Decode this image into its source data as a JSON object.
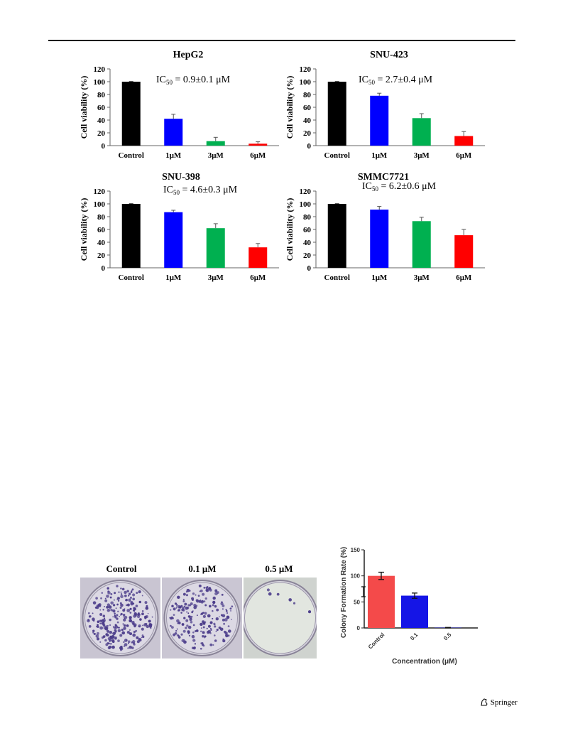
{
  "colors": {
    "black": "#000000",
    "blue": "#0000ff",
    "green": "#00b050",
    "red": "#ff0000",
    "colony_red": "#f44a4a",
    "colony_blue": "#1515e6"
  },
  "chart_data": [
    {
      "type": "bar",
      "title": "HepG2",
      "ylabel": "Cell viability (%)",
      "annotation": "IC50 = 0.9±0.1 μM",
      "categories": [
        "Control",
        "1μM",
        "3μM",
        "6μM"
      ],
      "values": [
        100,
        42,
        7,
        3
      ],
      "errors": [
        0,
        7,
        6,
        3
      ],
      "ylim": [
        0,
        120
      ],
      "yticks": [
        0,
        20,
        40,
        60,
        80,
        100,
        120
      ],
      "grid": false
    },
    {
      "type": "bar",
      "title": "SNU-423",
      "ylabel": "Cell viability (%)",
      "annotation": "IC50 = 2.7±0.4 μM",
      "categories": [
        "Control",
        "1μM",
        "3μM",
        "6μM"
      ],
      "values": [
        100,
        78,
        43,
        15
      ],
      "errors": [
        0,
        4,
        7,
        7
      ],
      "ylim": [
        0,
        120
      ],
      "yticks": [
        0,
        20,
        40,
        60,
        80,
        100,
        120
      ],
      "grid": false
    },
    {
      "type": "bar",
      "title": "SNU-398",
      "ylabel": "Cell viability (%)",
      "annotation": "IC50 = 4.6±0.3 μM",
      "categories": [
        "Control",
        "1μM",
        "3μM",
        "6μM"
      ],
      "values": [
        100,
        87,
        62,
        32
      ],
      "errors": [
        0,
        3,
        7,
        6
      ],
      "ylim": [
        0,
        120
      ],
      "yticks": [
        0,
        20,
        40,
        60,
        80,
        100,
        120
      ],
      "grid": false
    },
    {
      "type": "bar",
      "title": "SMMC7721",
      "ylabel": "Cell viability (%)",
      "annotation": "IC50 = 6.2±0.6 μM",
      "categories": [
        "Control",
        "1μM",
        "3μM",
        "6μM"
      ],
      "values": [
        100,
        91,
        73,
        51
      ],
      "errors": [
        0,
        5,
        6,
        9
      ],
      "ylim": [
        0,
        120
      ],
      "yticks": [
        0,
        20,
        40,
        60,
        80,
        100,
        120
      ],
      "grid": false
    },
    {
      "type": "bar",
      "title": "",
      "xlabel": "Concentration (μM)",
      "ylabel": "Colony Formation Rate (%)",
      "categories": [
        "Control",
        "0.1",
        "0.5"
      ],
      "values": [
        100,
        62,
        0.5
      ],
      "errors": [
        7,
        5,
        0.5
      ],
      "ylim": [
        0,
        150
      ],
      "yticks": [
        0,
        50,
        100,
        150
      ],
      "grid": false
    }
  ],
  "photos": {
    "labels": [
      "Control",
      "0.1 μM",
      "0.5 μM"
    ]
  },
  "footer": {
    "publisher": "Springer"
  }
}
